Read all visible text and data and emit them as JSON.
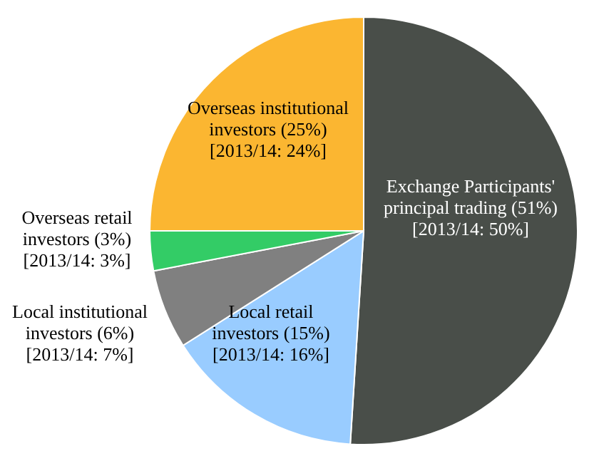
{
  "chart_data": {
    "type": "pie",
    "categories": [
      "Exchange Participants' principal trading",
      "Local retail investors",
      "Local institutional investors",
      "Overseas retail investors",
      "Overseas institutional investors"
    ],
    "values": [
      51,
      15,
      6,
      3,
      25
    ],
    "colors": [
      "#494e49",
      "#99ccff",
      "#808080",
      "#33cc66",
      "#fbb631"
    ],
    "value_labels": [
      "(51%)",
      "(15%)",
      "(6%)",
      "(3%)",
      "(25%)"
    ],
    "annotations": [
      "[2013/14: 50%]",
      "[2013/14: 16%]",
      "[2013/14: 7%]",
      "[2013/14: 3%]",
      "[2013/14: 24%]"
    ]
  }
}
